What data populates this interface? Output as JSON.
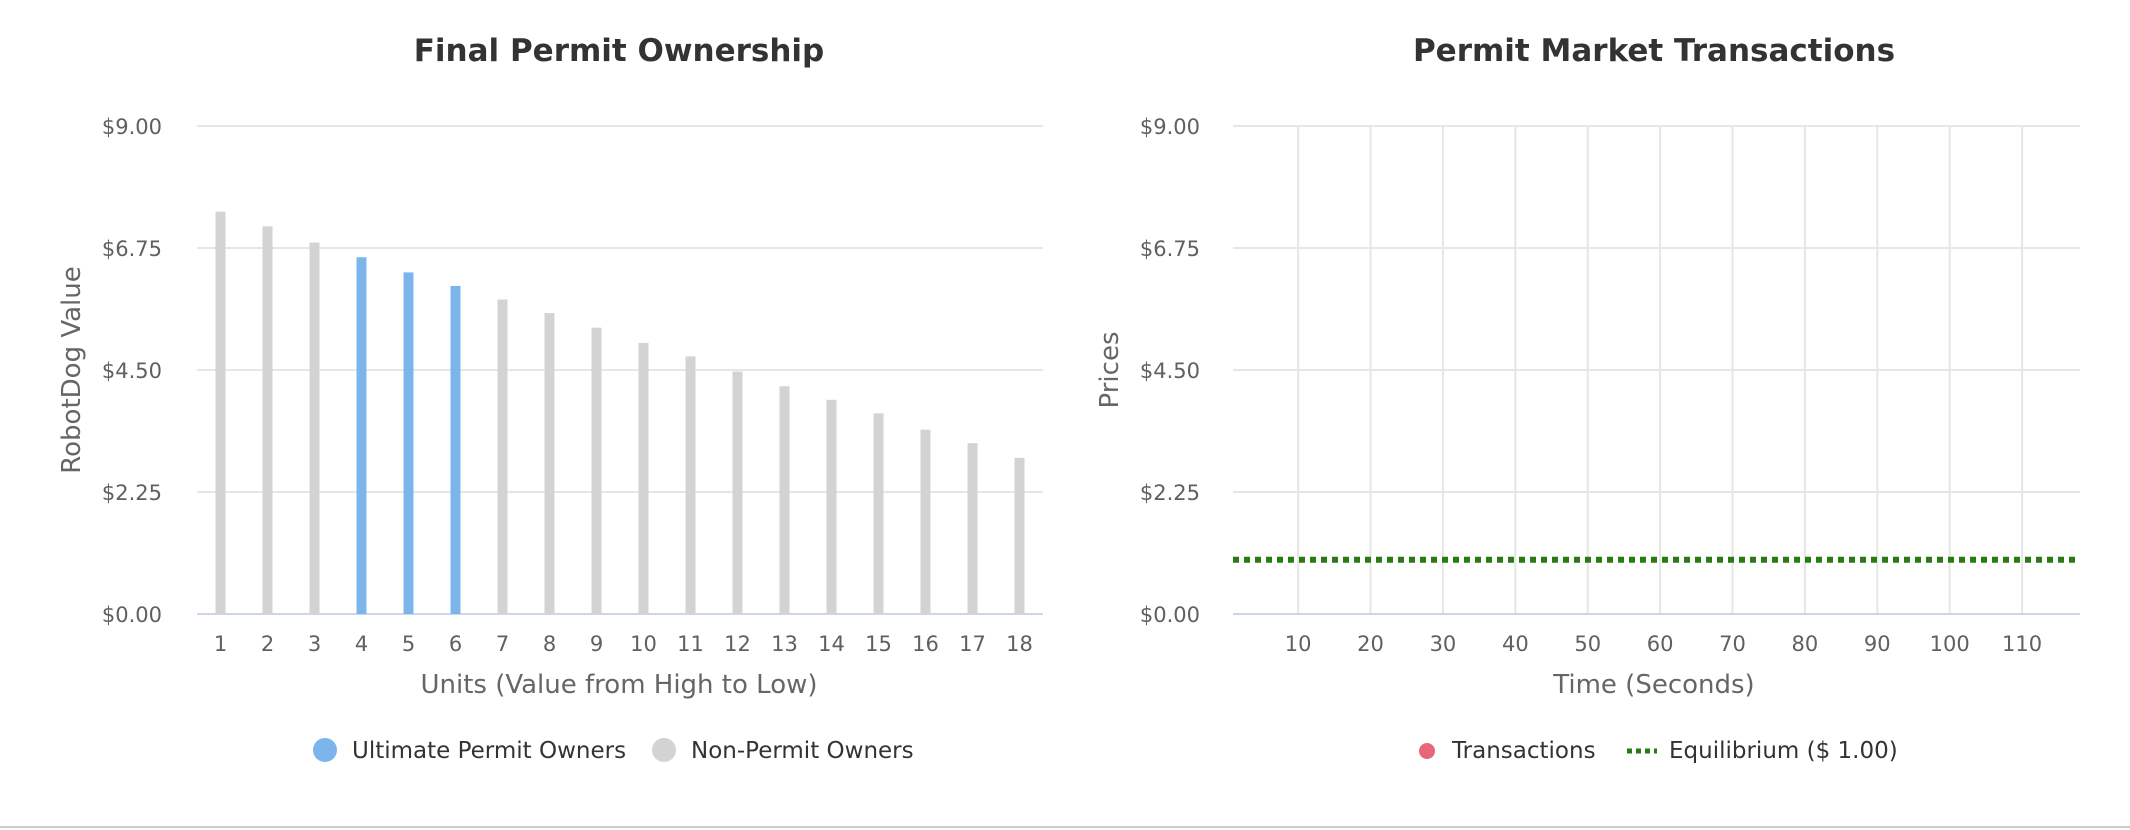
{
  "chart_data": [
    {
      "type": "bar",
      "title": "Final Permit Ownership",
      "xlabel": "Units (Value from High to Low)",
      "ylabel": "RobotDog Value",
      "ylim": [
        0,
        9
      ],
      "yticks": [
        "$0.00",
        "$2.25",
        "$4.50",
        "$6.75",
        "$9.00"
      ],
      "categories": [
        "1",
        "2",
        "3",
        "4",
        "5",
        "6",
        "7",
        "8",
        "9",
        "10",
        "11",
        "12",
        "13",
        "14",
        "15",
        "16",
        "17",
        "18"
      ],
      "values": [
        7.42,
        7.15,
        6.85,
        6.58,
        6.3,
        6.05,
        5.8,
        5.55,
        5.28,
        5.0,
        4.75,
        4.47,
        4.2,
        3.95,
        3.7,
        3.4,
        3.15,
        2.88
      ],
      "owner_flags": [
        false,
        false,
        false,
        true,
        true,
        true,
        false,
        false,
        false,
        false,
        false,
        false,
        false,
        false,
        false,
        false,
        false,
        false
      ],
      "legend": [
        {
          "label": "Ultimate Permit Owners",
          "color": "#7cb5ec"
        },
        {
          "label": "Non-Permit Owners",
          "color": "#d3d3d3"
        }
      ],
      "grid": true,
      "legend_position": "bottom-center"
    },
    {
      "type": "line",
      "title": "Permit Market Transactions",
      "xlabel": "Time (Seconds)",
      "ylabel": "Prices",
      "ylim": [
        0,
        9
      ],
      "xlim": [
        1,
        118
      ],
      "yticks": [
        "$0.00",
        "$2.25",
        "$4.50",
        "$6.75",
        "$9.00"
      ],
      "xticks": [
        10,
        20,
        30,
        40,
        50,
        60,
        70,
        80,
        90,
        100,
        110
      ],
      "series": [
        {
          "name": "Transactions",
          "color": "#e8657a",
          "points": []
        },
        {
          "name": "Equilibrium ($ 1.00)",
          "color": "#2a7a14",
          "y": 1.0,
          "style": "dotted"
        }
      ],
      "grid": true,
      "legend_position": "bottom-center"
    }
  ]
}
